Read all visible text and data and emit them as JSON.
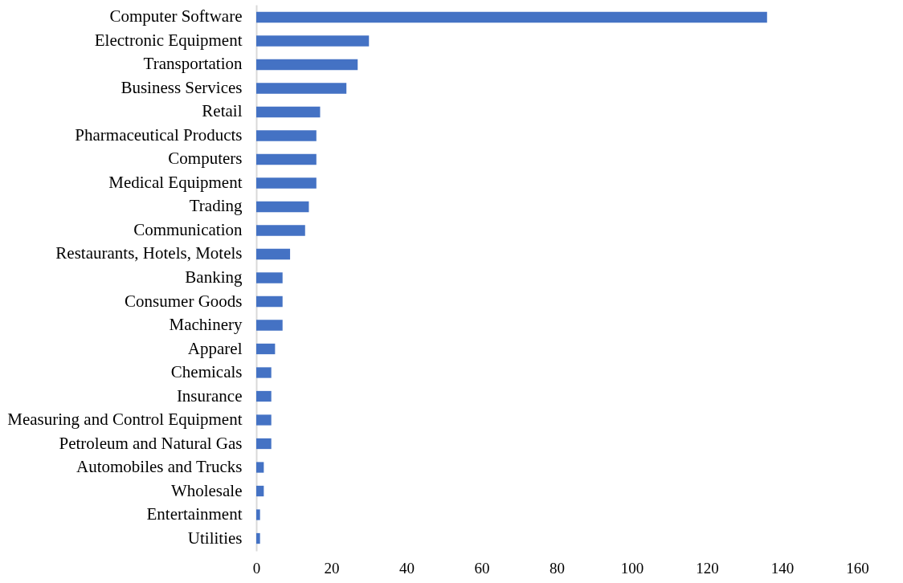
{
  "chart_data": {
    "type": "bar",
    "orientation": "horizontal",
    "categories": [
      "Computer Software",
      "Electronic Equipment",
      "Transportation",
      "Business Services",
      "Retail",
      "Pharmaceutical Products",
      "Computers",
      "Medical Equipment",
      "Trading",
      "Communication",
      "Restaurants, Hotels, Motels",
      "Banking",
      "Consumer Goods",
      "Machinery",
      "Apparel",
      "Chemicals",
      "Insurance",
      "Measuring and Control Equipment",
      "Petroleum and Natural Gas",
      "Automobiles and Trucks",
      "Wholesale",
      "Entertainment",
      "Utilities"
    ],
    "values": [
      136,
      30,
      27,
      24,
      17,
      16,
      16,
      16,
      14,
      13,
      9,
      7,
      7,
      7,
      5,
      4,
      4,
      4,
      4,
      2,
      2,
      1,
      1
    ],
    "color": "#4472c4",
    "xlim": [
      0,
      160
    ],
    "xticks": [
      0,
      20,
      40,
      60,
      80,
      100,
      120,
      140,
      160
    ],
    "grid": false
  }
}
